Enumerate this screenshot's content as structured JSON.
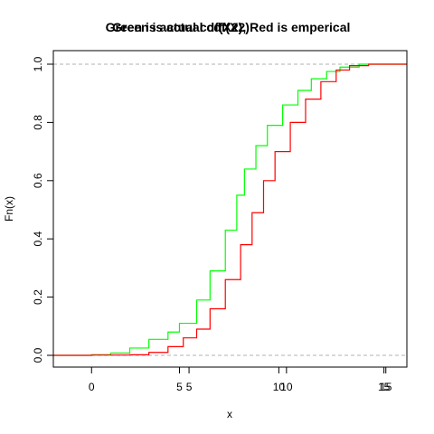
{
  "chart_data": {
    "type": "line",
    "title_overlay_1": "Green is actual cdf(X2)",
    "title_overlay_2": "Green is actual cdf(X2), Red is emperical",
    "title_line_1": "Green is actua",
    "title_line_1_suffix": "l cdf(X2)",
    "title_line_2": "Red is emperical",
    "xlabel": "x",
    "ylabel": "Fn(x)",
    "xlim": [
      -2,
      16.5
    ],
    "ylim": [
      0,
      1
    ],
    "x_ticks": [
      {
        "value": 0,
        "label": "0"
      },
      {
        "value": 4.6,
        "label": "5"
      },
      {
        "value": 5.1,
        "label": "5"
      },
      {
        "value": 9.8,
        "label": "10"
      },
      {
        "value": 10.2,
        "label": "10"
      },
      {
        "value": 15.3,
        "label": "15"
      },
      {
        "value": 15.4,
        "label": "15"
      }
    ],
    "y_ticks": [
      {
        "value": 0.0,
        "label": "0.0"
      },
      {
        "value": 0.2,
        "label": "0.2"
      },
      {
        "value": 0.4,
        "label": "0.4"
      },
      {
        "value": 0.6,
        "label": "0.6"
      },
      {
        "value": 0.8,
        "label": "0.8"
      },
      {
        "value": 1.0,
        "label": "1.0"
      }
    ],
    "reference_lines": [
      0,
      1
    ],
    "colors": {
      "green": "#00ff00",
      "red": "#ff0000",
      "ref": "#b0b0b0",
      "axis": "#000000"
    },
    "series": [
      {
        "color": "#00ff00",
        "x": [
          -2,
          0,
          1,
          2,
          3,
          4,
          4.6,
          5.5,
          6.2,
          7.0,
          7.6,
          8.0,
          8.6,
          9.2,
          10.0,
          10.8,
          11.5,
          12.3,
          13.0,
          14.0,
          16.5
        ],
        "y": [
          0,
          0.002,
          0.008,
          0.025,
          0.055,
          0.08,
          0.11,
          0.19,
          0.29,
          0.43,
          0.55,
          0.64,
          0.72,
          0.79,
          0.86,
          0.91,
          0.95,
          0.975,
          0.99,
          1.0,
          1.0
        ]
      },
      {
        "color": "#ff0000",
        "x": [
          -2,
          0,
          2,
          3,
          4,
          4.8,
          5.5,
          6.2,
          7.0,
          7.8,
          8.4,
          9.0,
          9.6,
          10.4,
          11.2,
          12.0,
          12.8,
          13.5,
          14.5,
          16.5
        ],
        "y": [
          0,
          0.001,
          0.002,
          0.01,
          0.03,
          0.06,
          0.09,
          0.16,
          0.26,
          0.38,
          0.49,
          0.6,
          0.7,
          0.8,
          0.88,
          0.94,
          0.98,
          0.995,
          1.0,
          1.0
        ]
      }
    ]
  }
}
